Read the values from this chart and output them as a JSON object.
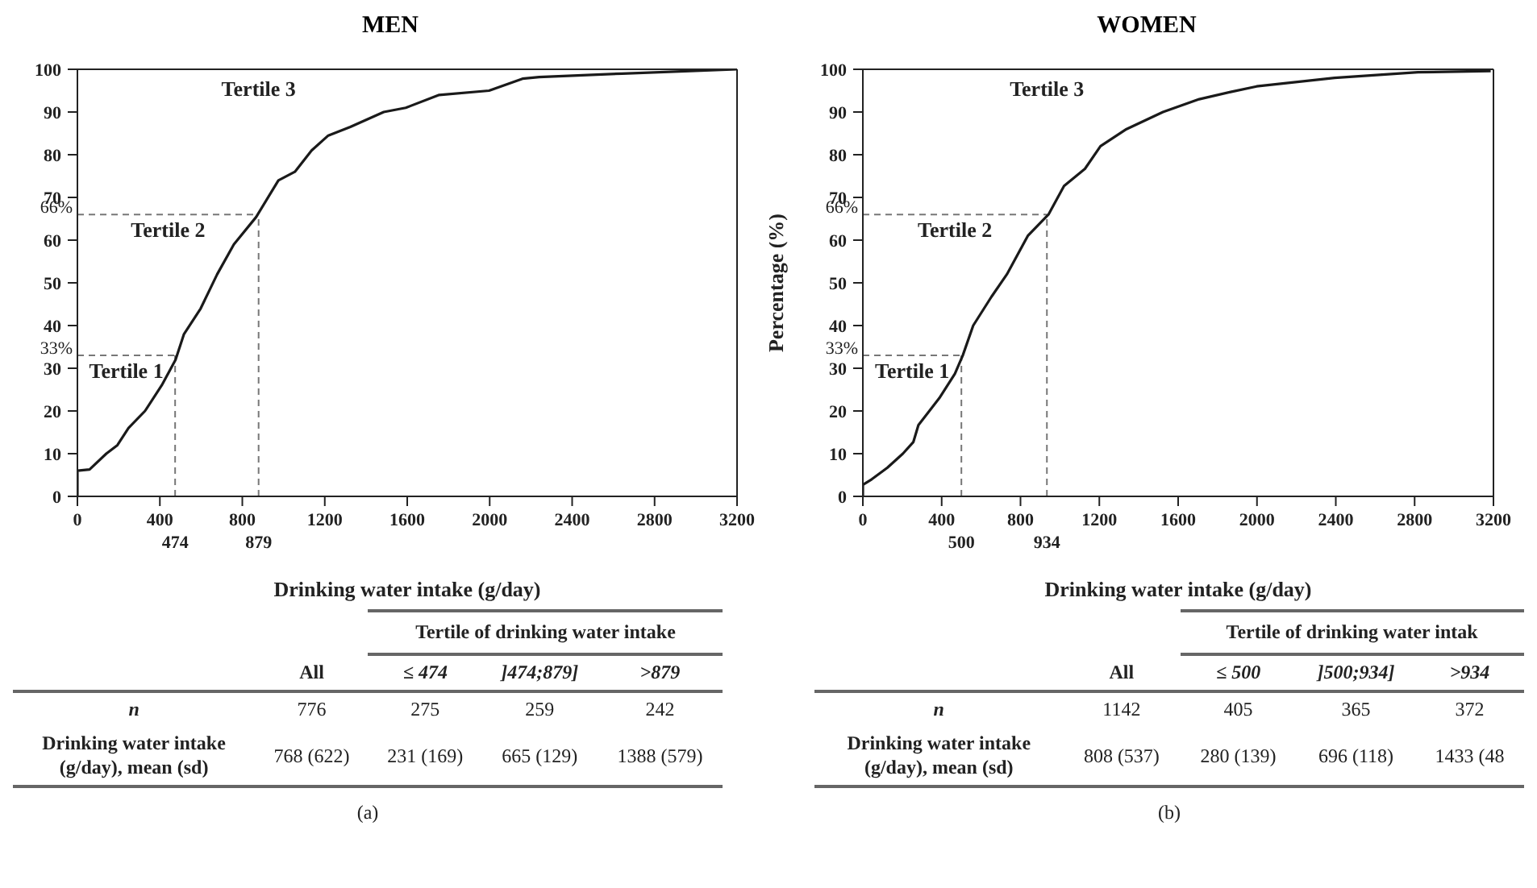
{
  "chart_data": [
    {
      "type": "line",
      "title": "MEN",
      "xlabel": "Drinking water intake (g/day)",
      "color": "#1a1a1a",
      "x": [
        0,
        0,
        59,
        140,
        194,
        248,
        328,
        409,
        476,
        517,
        598,
        678,
        759,
        867,
        975,
        1055,
        1136,
        1217,
        1324,
        1486,
        1593,
        1755,
        1997,
        2159,
        2240,
        2643,
        3200
      ],
      "values": [
        0,
        6,
        6.3,
        10,
        12,
        16,
        20,
        26,
        32,
        38,
        44,
        52,
        59,
        65.4,
        74,
        76,
        81,
        84.5,
        86.5,
        90,
        91,
        94,
        95,
        97.8,
        98.2,
        99,
        100
      ],
      "xlim": [
        0,
        3200
      ],
      "xticks": [
        0,
        400,
        800,
        1200,
        1600,
        2000,
        2400,
        2800,
        3200
      ],
      "ylim": [
        0,
        100
      ],
      "yticks": [
        0,
        10,
        20,
        30,
        40,
        50,
        60,
        70,
        80,
        90,
        100
      ],
      "ref_lines": [
        {
          "axis": "x",
          "value": 474,
          "label": "474",
          "line_style": "dashed",
          "color": "#777777"
        },
        {
          "axis": "y",
          "value": 33,
          "label": "33%",
          "line_style": "dashed",
          "color": "#777777"
        },
        {
          "axis": "x",
          "value": 879,
          "label": "879",
          "line_style": "dashed",
          "color": "#777777"
        },
        {
          "axis": "y",
          "value": 66,
          "label": "66%",
          "line_style": "dashed",
          "color": "#777777"
        }
      ],
      "annotations": [
        "Tertile 1",
        "Tertile 2",
        "Tertile 3"
      ]
    },
    {
      "type": "line",
      "title": "WOMEN",
      "xlabel": "Drinking water intake (g/day)",
      "ylabel": "Percentage (%)",
      "color": "#1a1a1a",
      "x": [
        0,
        0,
        45,
        124,
        203,
        256,
        282,
        388,
        467,
        507,
        560,
        652,
        731,
        837,
        942,
        1021,
        1127,
        1206,
        1338,
        1523,
        1707,
        1866,
        1998,
        2394,
        2817,
        3186
      ],
      "values": [
        0,
        2.7,
        4,
        6.7,
        10,
        12.7,
        16.7,
        23,
        28.7,
        33,
        40,
        46.7,
        52,
        61,
        66,
        72.7,
        76.7,
        82,
        86,
        90,
        93,
        94.7,
        96,
        98,
        99.3,
        99.6
      ],
      "xlim": [
        0,
        3200
      ],
      "xticks": [
        0,
        400,
        800,
        1200,
        1600,
        2000,
        2400,
        2800,
        3200
      ],
      "ylim": [
        0,
        100
      ],
      "yticks": [
        0,
        10,
        20,
        30,
        40,
        50,
        60,
        70,
        80,
        90,
        100
      ],
      "ref_lines": [
        {
          "axis": "x",
          "value": 500,
          "label": "500",
          "line_style": "dashed",
          "color": "#777777"
        },
        {
          "axis": "y",
          "value": 33,
          "label": "33%",
          "line_style": "dashed",
          "color": "#777777"
        },
        {
          "axis": "x",
          "value": 934,
          "label": "934",
          "line_style": "dashed",
          "color": "#777777"
        },
        {
          "axis": "y",
          "value": 66,
          "label": "66%",
          "line_style": "dashed",
          "color": "#777777"
        }
      ],
      "annotations": [
        "Tertile 1",
        "Tertile 2",
        "Tertile 3"
      ]
    },
    {
      "type": "other",
      "annotations": [
        "Tertile of drinking water intake",
        "All",
        "≤ 474",
        "]474;879]",
        ">879",
        "n",
        "776",
        "275",
        "259",
        "242",
        "Drinking water intake\n(g/day), mean (sd)",
        "768 (622)",
        "231 (169)",
        "665 (129)",
        "1388 (579)",
        "(a)"
      ]
    },
    {
      "type": "other",
      "annotations": [
        "Tertile of drinking water intak",
        "All",
        "≤ 500",
        "]500;934]",
        ">934",
        "n",
        "1142",
        "405",
        "365",
        "372",
        "Drinking water intake\n(g/day), mean (sd)",
        "808 (537)",
        "280 (139)",
        "696 (118)",
        "1433 (48",
        "(b)"
      ]
    }
  ]
}
